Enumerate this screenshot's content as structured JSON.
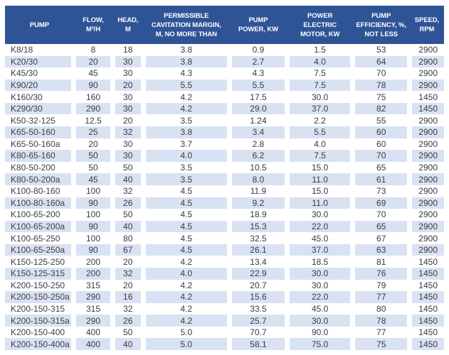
{
  "colors": {
    "header_bg": "#2F5496",
    "header_text": "#FFFFFF",
    "stripe_bg": "#D9E2F3",
    "body_text": "#3B3B3B"
  },
  "table": {
    "columns": [
      {
        "id": "pump",
        "label": "PUMP"
      },
      {
        "id": "flow",
        "label": "FLOW,\nM³/H"
      },
      {
        "id": "head",
        "label": "HEAD,\nM"
      },
      {
        "id": "cavitation",
        "label": "PERMISSIBLE\nCAVITATION MARGIN,\nM, NO MORE THAN"
      },
      {
        "id": "power",
        "label": "PUMP\nPOWER, KW"
      },
      {
        "id": "motor",
        "label": "POWER\nELECTRIC\nMOTOR, KW"
      },
      {
        "id": "efficiency",
        "label": "PUMP\nEFFICIENCY, %,\nNOT LESS"
      },
      {
        "id": "speed",
        "label": "SPEED,\nRPM"
      }
    ],
    "rows": [
      [
        "K8/18",
        "8",
        "18",
        "3.8",
        "0.9",
        "1.5",
        "53",
        "2900"
      ],
      [
        "K20/30",
        "20",
        "30",
        "3.8",
        "2.7",
        "4.0",
        "64",
        "2900"
      ],
      [
        "K45/30",
        "45",
        "30",
        "4.3",
        "4.3",
        "7.5",
        "70",
        "2900"
      ],
      [
        "K90/20",
        "90",
        "20",
        "5.5",
        "5.5",
        "7.5",
        "78",
        "2900"
      ],
      [
        "K160/30",
        "160",
        "30",
        "4.2",
        "17.5",
        "30.0",
        "75",
        "1450"
      ],
      [
        "K290/30",
        "290",
        "30",
        "4.2",
        "29.0",
        "37.0",
        "82",
        "1450"
      ],
      [
        "K50-32-125",
        "12.5",
        "20",
        "3.5",
        "1.24",
        "2.2",
        "55",
        "2900"
      ],
      [
        "K65-50-160",
        "25",
        "32",
        "3.8",
        "3.4",
        "5.5",
        "60",
        "2900"
      ],
      [
        "K65-50-160a",
        "20",
        "30",
        "3.7",
        "2.8",
        "4.0",
        "60",
        "2900"
      ],
      [
        "K80-65-160",
        "50",
        "30",
        "4.0",
        "6.2",
        "7.5",
        "70",
        "2900"
      ],
      [
        "K80-50-200",
        "50",
        "50",
        "3.5",
        "10.5",
        "15.0",
        "65",
        "2900"
      ],
      [
        "K80-50-200a",
        "45",
        "40",
        "3.5",
        "8.0",
        "11.0",
        "61",
        "2900"
      ],
      [
        "K100-80-160",
        "100",
        "32",
        "4.5",
        "11.9",
        "15.0",
        "73",
        "2900"
      ],
      [
        "K100-80-160a",
        "90",
        "26",
        "4.5",
        "9.2",
        "11.0",
        "69",
        "2900"
      ],
      [
        "K100-65-200",
        "100",
        "50",
        "4.5",
        "18.9",
        "30.0",
        "70",
        "2900"
      ],
      [
        "K100-65-200a",
        "90",
        "40",
        "4.5",
        "15.3",
        "22.0",
        "65",
        "2900"
      ],
      [
        "K100-65-250",
        "100",
        "80",
        "4.5",
        "32.5",
        "45.0",
        "67",
        "2900"
      ],
      [
        "K100-65-250a",
        "90",
        "67",
        "4.5",
        "26.1",
        "37.0",
        "63",
        "2900"
      ],
      [
        "K150-125-250",
        "200",
        "20",
        "4.2",
        "13.4",
        "18.5",
        "81",
        "1450"
      ],
      [
        "K150-125-315",
        "200",
        "32",
        "4.0",
        "22.9",
        "30.0",
        "76",
        "1450"
      ],
      [
        "K200-150-250",
        "315",
        "20",
        "4.2",
        "20.7",
        "30.0",
        "79",
        "1450"
      ],
      [
        "K200-150-250a",
        "290",
        "16",
        "4.2",
        "15.6",
        "22.0",
        "77",
        "1450"
      ],
      [
        "K200-150-315",
        "315",
        "32",
        "4.2",
        "33.5",
        "45.0",
        "80",
        "1450"
      ],
      [
        "K200-150-315a",
        "290",
        "26",
        "4.2",
        "25.7",
        "30.0",
        "78",
        "1450"
      ],
      [
        "K200-150-400",
        "400",
        "50",
        "5.0",
        "70.7",
        "90.0",
        "77",
        "1450"
      ],
      [
        "K200-150-400a",
        "400",
        "40",
        "5.0",
        "58.1",
        "75.0",
        "75",
        "1450"
      ]
    ]
  }
}
